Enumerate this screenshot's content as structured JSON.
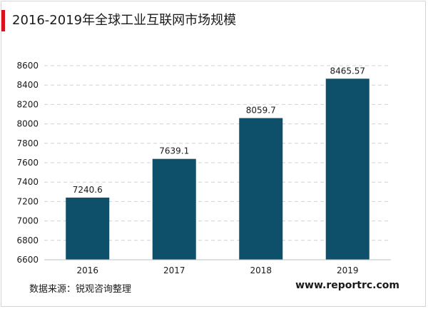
{
  "header": {
    "title": "2016-2019年全球工业互联网市场规模"
  },
  "chart_data": {
    "type": "bar",
    "categories": [
      "2016",
      "2017",
      "2018",
      "2019"
    ],
    "values": [
      7240.6,
      7639.1,
      8059.7,
      8465.57
    ],
    "value_labels": [
      "7240.6",
      "7639.1",
      "8059.7",
      "8465.57"
    ],
    "ylim": [
      6600,
      8600
    ],
    "yticks": [
      6600,
      6800,
      7000,
      7200,
      7400,
      7600,
      7800,
      8000,
      8200,
      8400,
      8600
    ],
    "grid": true,
    "bar_color": "#0e4f69",
    "grid_color": "#d0d0d0"
  },
  "footer": {
    "source": "数据来源：锐观咨询整理",
    "website": "www.reportrc.com"
  }
}
